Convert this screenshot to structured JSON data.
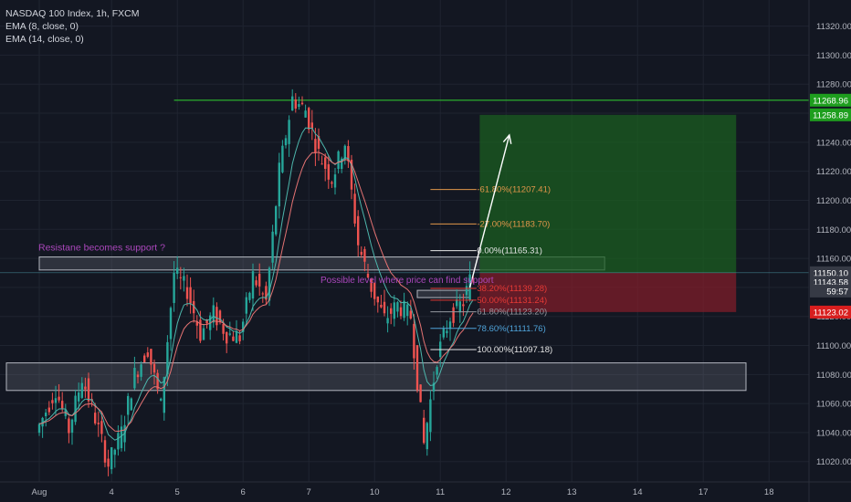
{
  "legend": {
    "symbol": "NASDAQ 100 Index, 1h, FXCM",
    "ema1": "EMA (8, close, 0)",
    "ema2": "EMA (14, close, 0)"
  },
  "annotations": {
    "resistance_note": "Resistane becomes support ?",
    "support_note": "Possible level where price can find support"
  },
  "price_tags": [
    {
      "label": "11268.96",
      "value": 11268.96,
      "color": "#1e9e1e"
    },
    {
      "label": "11258.89",
      "value": 11258.89,
      "color": "#1e9e1e"
    },
    {
      "label": "11150.10",
      "value": 11150.1,
      "color": "#363a45"
    },
    {
      "label": "11143.58",
      "value": 11143.58,
      "color": "#363a45"
    },
    {
      "label": "59:57",
      "value": 11137.5,
      "color": "#363a45"
    },
    {
      "label": "11123.02",
      "value": 11123.02,
      "color": "#d81e1e"
    }
  ],
  "fib_levels": [
    {
      "label": "-61.80%(11207.41)",
      "value": 11207.41,
      "color": "#e0964a"
    },
    {
      "label": "-27.00%(11183.70)",
      "value": 11183.7,
      "color": "#e0964a"
    },
    {
      "label": "0.00%(11165.31)",
      "value": 11165.31,
      "color": "#e6e6e6"
    },
    {
      "label": "38.20%(11139.28)",
      "value": 11139.28,
      "color": "#e53935"
    },
    {
      "label": "50.00%(11131.24)",
      "value": 11131.24,
      "color": "#e53935"
    },
    {
      "label": "61.80%(11123.20)",
      "value": 11123.2,
      "color": "#9598a1"
    },
    {
      "label": "78.60%(11111.76)",
      "value": 11111.76,
      "color": "#4fa3d9"
    },
    {
      "label": "100.00%(11097.18)",
      "value": 11097.18,
      "color": "#e6e6e6"
    }
  ],
  "colors": {
    "up": "#26a69a",
    "down": "#ef5350",
    "ema8": "#4db6ac",
    "ema14": "#e57373",
    "resistance_line": "#2ebd2e",
    "target_zone": "#1b5e20",
    "stop_zone": "#7f1d2a",
    "note_color": "#ab47bc"
  },
  "chart_data": {
    "type": "candlestick",
    "title": "NASDAQ 100 Index, 1h, FXCM",
    "y_axis": {
      "range": [
        11006,
        11338
      ],
      "ticks": [
        11020,
        11040,
        11060,
        11080,
        11100,
        11120,
        11140,
        11160,
        11180,
        11200,
        11220,
        11240,
        11260,
        11280,
        11300,
        11320
      ],
      "side": "right"
    },
    "x_axis": {
      "ticks": [
        {
          "label": "Aug",
          "index": 0
        },
        {
          "label": "4",
          "index": 22
        },
        {
          "label": "5",
          "index": 42
        },
        {
          "label": "6",
          "index": 62
        },
        {
          "label": "7",
          "index": 82
        },
        {
          "label": "10",
          "index": 102
        },
        {
          "label": "11",
          "index": 122
        },
        {
          "label": "12",
          "index": 142
        },
        {
          "label": "13",
          "index": 162
        },
        {
          "label": "14",
          "index": 182
        },
        {
          "label": "17",
          "index": 202
        },
        {
          "label": "18",
          "index": 222
        }
      ]
    },
    "candle_anchors": [
      [
        0,
        11040
      ],
      [
        6,
        11070
      ],
      [
        10,
        11042
      ],
      [
        14,
        11078
      ],
      [
        18,
        11050
      ],
      [
        22,
        11018
      ],
      [
        26,
        11040
      ],
      [
        30,
        11080
      ],
      [
        34,
        11098
      ],
      [
        38,
        11058
      ],
      [
        42,
        11150
      ],
      [
        46,
        11138
      ],
      [
        50,
        11108
      ],
      [
        54,
        11122
      ],
      [
        58,
        11108
      ],
      [
        62,
        11106
      ],
      [
        66,
        11148
      ],
      [
        70,
        11130
      ],
      [
        74,
        11220
      ],
      [
        78,
        11270
      ],
      [
        82,
        11262
      ],
      [
        86,
        11232
      ],
      [
        90,
        11215
      ],
      [
        94,
        11240
      ],
      [
        98,
        11170
      ],
      [
        102,
        11140
      ],
      [
        106,
        11118
      ],
      [
        110,
        11128
      ],
      [
        114,
        11120
      ],
      [
        118,
        11032
      ],
      [
        122,
        11092
      ],
      [
        126,
        11120
      ],
      [
        130,
        11130
      ],
      [
        132,
        11145
      ]
    ],
    "resistance_line": {
      "value": 11268.96,
      "x_from_index": 41
    },
    "zones": [
      {
        "name": "resistance-becomes-support",
        "y_top": 11161,
        "y_bottom": 11152,
        "x_from": 0,
        "x_to": 172
      },
      {
        "name": "support-band",
        "y_top": 11088,
        "y_bottom": 11069,
        "x_from": -10,
        "x_to": 215
      },
      {
        "name": "support-box-small",
        "y_top": 11138,
        "y_bottom": 11133,
        "x_from": 115,
        "x_to": 131
      }
    ],
    "position": {
      "target": 11258.89,
      "entry": 11150.1,
      "stop": 11123.02,
      "x_from": 134,
      "x_to": 212
    },
    "arrow": {
      "from": {
        "index": 131,
        "value": 11140
      },
      "to": {
        "index": 143,
        "value": 11245
      }
    }
  }
}
